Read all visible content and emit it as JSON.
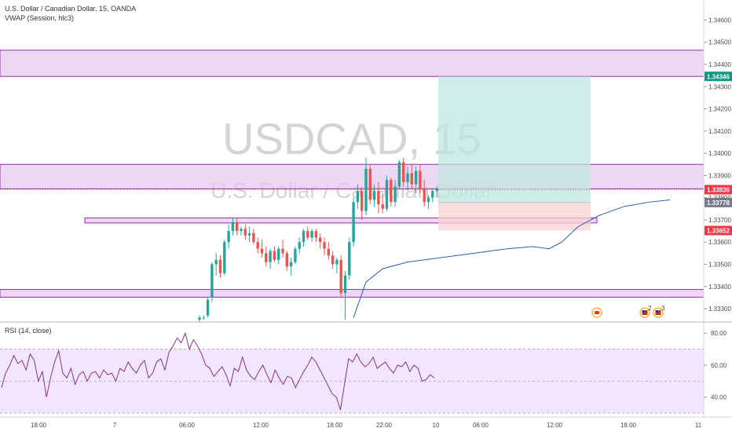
{
  "header": {
    "symbol_line": "U.S. Dollar / Canadian Dollar, 15, OANDA",
    "indicator_line": "VWAP (Session, hlc3)",
    "rsi_label": "RSI (14, close)"
  },
  "watermark": {
    "ticker": "USDCAD, 15",
    "description": "U.S. Dollar / Canadian Dollar"
  },
  "colors": {
    "up": "#26a69a",
    "down": "#ef5350",
    "zone_fill": "#e6c8ef",
    "zone_border": "#9c27b0",
    "vwap": "#2a5db0",
    "rsi_line": "#7e1f86",
    "rsi_band": "#f1e6fb",
    "profit_fill": "#bfe7df",
    "loss_fill": "#fbd3d3"
  },
  "chart_data": {
    "type": "candlestick",
    "price_axis": {
      "ticks": [
        "1.34600",
        "1.34500",
        "1.34400",
        "1.34300",
        "1.34200",
        "1.34100",
        "1.34000",
        "1.33900",
        "1.33800",
        "1.33700",
        "1.33600",
        "1.33500",
        "1.33400",
        "1.33300"
      ],
      "range": [
        1.3324,
        1.3469
      ]
    },
    "time_axis": {
      "ticks": [
        "18:00",
        "7",
        "06:00",
        "12:00",
        "18:00",
        "22:00",
        "10",
        "06:00",
        "12:00",
        "18:00",
        "11"
      ]
    },
    "price_tags": [
      {
        "value": "1.34346",
        "color": "#089981"
      },
      {
        "value": "1.33836",
        "color": "#f23645"
      },
      {
        "value": "1.33778",
        "color": "#787b86"
      },
      {
        "value": "1.33652",
        "color": "#f23645"
      }
    ],
    "zones": [
      {
        "top": 1.34464,
        "bottom": 1.34346
      },
      {
        "top": 1.3395,
        "bottom": 1.3384
      },
      {
        "top": 1.33709,
        "bottom": 1.33686
      },
      {
        "top": 1.33387,
        "bottom": 1.33352
      }
    ],
    "position": {
      "entry": 1.33778,
      "target": 1.34346,
      "stop": 1.33652
    },
    "candles": [
      [
        1.3325,
        1.3327,
        1.3324,
        1.3326
      ],
      [
        1.3326,
        1.3327,
        1.3325,
        1.3326
      ],
      [
        1.3327,
        1.3335,
        1.3326,
        1.3334
      ],
      [
        1.3335,
        1.3351,
        1.3333,
        1.335
      ],
      [
        1.335,
        1.3355,
        1.3345,
        1.3352
      ],
      [
        1.3352,
        1.3354,
        1.3344,
        1.3346
      ],
      [
        1.3346,
        1.3361,
        1.3345,
        1.336
      ],
      [
        1.336,
        1.3368,
        1.3357,
        1.3365
      ],
      [
        1.3365,
        1.3371,
        1.3363,
        1.3369
      ],
      [
        1.3369,
        1.3371,
        1.3363,
        1.3365
      ],
      [
        1.3365,
        1.3367,
        1.3363,
        1.3366
      ],
      [
        1.3366,
        1.3368,
        1.3361,
        1.3363
      ],
      [
        1.3363,
        1.3367,
        1.336,
        1.3364
      ],
      [
        1.3364,
        1.3366,
        1.3359,
        1.336
      ],
      [
        1.336,
        1.3362,
        1.3355,
        1.3357
      ],
      [
        1.3357,
        1.3361,
        1.3353,
        1.3355
      ],
      [
        1.3355,
        1.3358,
        1.3349,
        1.3351
      ],
      [
        1.3351,
        1.3357,
        1.3348,
        1.3356
      ],
      [
        1.3356,
        1.3358,
        1.3351,
        1.3352
      ],
      [
        1.3352,
        1.3358,
        1.335,
        1.3357
      ],
      [
        1.3357,
        1.3361,
        1.3353,
        1.3355
      ],
      [
        1.3355,
        1.3356,
        1.3347,
        1.3349
      ],
      [
        1.3349,
        1.3353,
        1.3345,
        1.3351
      ],
      [
        1.3351,
        1.3358,
        1.335,
        1.3357
      ],
      [
        1.3357,
        1.3362,
        1.3355,
        1.336
      ],
      [
        1.336,
        1.3366,
        1.3358,
        1.3365
      ],
      [
        1.3365,
        1.3367,
        1.3361,
        1.3362
      ],
      [
        1.3362,
        1.3366,
        1.336,
        1.3365
      ],
      [
        1.3365,
        1.3366,
        1.336,
        1.3362
      ],
      [
        1.3362,
        1.3364,
        1.3357,
        1.336
      ],
      [
        1.336,
        1.3362,
        1.3354,
        1.3357
      ],
      [
        1.3357,
        1.336,
        1.3352,
        1.3354
      ],
      [
        1.3354,
        1.3356,
        1.3348,
        1.335
      ],
      [
        1.335,
        1.3353,
        1.3346,
        1.3352
      ],
      [
        1.3352,
        1.3354,
        1.3335,
        1.3337
      ],
      [
        1.3337,
        1.3347,
        1.3325,
        1.3345
      ],
      [
        1.3345,
        1.3362,
        1.3343,
        1.336
      ],
      [
        1.336,
        1.338,
        1.3358,
        1.3378
      ],
      [
        1.3378,
        1.3386,
        1.3375,
        1.3383
      ],
      [
        1.3383,
        1.3385,
        1.337,
        1.3374
      ],
      [
        1.3374,
        1.3398,
        1.3372,
        1.3393
      ],
      [
        1.3393,
        1.3395,
        1.3377,
        1.3379
      ],
      [
        1.3379,
        1.3386,
        1.3376,
        1.3383
      ],
      [
        1.3383,
        1.3387,
        1.3373,
        1.3377
      ],
      [
        1.3377,
        1.3382,
        1.3373,
        1.3375
      ],
      [
        1.3375,
        1.339,
        1.3374,
        1.3388
      ],
      [
        1.3388,
        1.3389,
        1.3376,
        1.3378
      ],
      [
        1.3378,
        1.3388,
        1.3376,
        1.3385
      ],
      [
        1.3385,
        1.3397,
        1.3384,
        1.3396
      ],
      [
        1.3396,
        1.3398,
        1.3385,
        1.3387
      ],
      [
        1.3387,
        1.3394,
        1.3383,
        1.3391
      ],
      [
        1.3391,
        1.3395,
        1.3384,
        1.3386
      ],
      [
        1.3386,
        1.3394,
        1.3382,
        1.3392
      ],
      [
        1.3392,
        1.3395,
        1.3382,
        1.3384
      ],
      [
        1.3384,
        1.3388,
        1.3376,
        1.3378
      ],
      [
        1.3378,
        1.3381,
        1.3375,
        1.338
      ],
      [
        1.338,
        1.3384,
        1.3378,
        1.3383
      ],
      [
        1.3383,
        1.3385,
        1.338,
        1.3384
      ]
    ],
    "vwap": [
      [
        37,
        1.3326
      ],
      [
        40,
        1.3342
      ],
      [
        44,
        1.3348
      ],
      [
        50,
        1.3351
      ],
      [
        58,
        1.3353
      ],
      [
        66,
        1.3355
      ],
      [
        74,
        1.3357
      ],
      [
        80,
        1.3358
      ],
      [
        84,
        1.3357
      ],
      [
        87,
        1.336
      ],
      [
        91,
        1.3367
      ],
      [
        96,
        1.3372
      ],
      [
        102,
        1.3376
      ],
      [
        108,
        1.3378
      ],
      [
        113,
        1.3379
      ]
    ],
    "rsi": {
      "ticks": [
        "80.00",
        "60.00",
        "40.00"
      ],
      "range": [
        28,
        86
      ],
      "band": [
        30,
        70
      ],
      "values": [
        46,
        55,
        60,
        66,
        61,
        63,
        57,
        67,
        63,
        50,
        56,
        40,
        52,
        62,
        69,
        55,
        52,
        58,
        48,
        54,
        56,
        50,
        55,
        56,
        52,
        57,
        54,
        55,
        50,
        58,
        56,
        62,
        58,
        55,
        60,
        63,
        52,
        55,
        62,
        64,
        57,
        68,
        72,
        77,
        74,
        80,
        70,
        76,
        72,
        67,
        60,
        58,
        53,
        56,
        59,
        54,
        47,
        58,
        56,
        65,
        57,
        53,
        51,
        56,
        60,
        54,
        49,
        57,
        52,
        48,
        53,
        52,
        46,
        51,
        56,
        60,
        65,
        62,
        57,
        52,
        47,
        42,
        40,
        32,
        48,
        64,
        62,
        67,
        62,
        59,
        61,
        65,
        58,
        60,
        62,
        58,
        55,
        60,
        59,
        62,
        56,
        60,
        58,
        50,
        51,
        54,
        52
      ]
    },
    "events": [
      {
        "kind": "flag-ca",
        "label": ""
      },
      {
        "kind": "flag-us",
        "label": "2"
      },
      {
        "kind": "flag-us",
        "label": "3"
      }
    ]
  }
}
